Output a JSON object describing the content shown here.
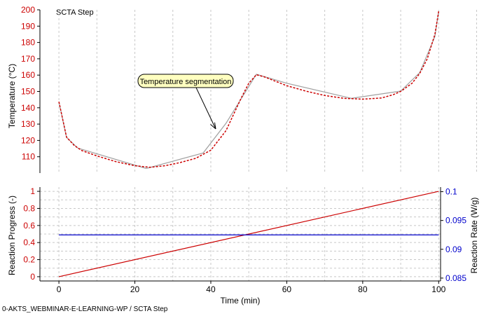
{
  "footer": {
    "text": "0-AKTS_WEBMINAR-E-LEARNING-WP / SCTA Step"
  },
  "colors": {
    "red": "#cc0000",
    "blue": "#0000cc",
    "grey": "#a0a0a0",
    "grid": "#c8c8c8",
    "axis": "#000000",
    "annotation_fill": "#ffffc0"
  },
  "chart_data": [
    {
      "type": "line",
      "title": "SCTA Step",
      "ylabel": "Temperature (°C)",
      "xlim": [
        -5,
        100.5
      ],
      "ylim": [
        100,
        200
      ],
      "yticks": [
        110,
        120,
        130,
        140,
        150,
        160,
        170,
        180,
        190,
        200
      ],
      "grid": "vertical-dashed",
      "series": [
        {
          "style": "grey-solid",
          "x": [
            0,
            2,
            5,
            23,
            38,
            44,
            52,
            60,
            77,
            90,
            95,
            99,
            100
          ],
          "y": [
            143.7,
            121.8,
            115.3,
            102.8,
            112.3,
            130.5,
            160.5,
            155,
            145.8,
            150.2,
            161.5,
            183.6,
            199.2
          ]
        },
        {
          "style": "red-dashed",
          "x": [
            0,
            1,
            2,
            4,
            6,
            10,
            15,
            20,
            24,
            28,
            32,
            36,
            40,
            44,
            48,
            50,
            52,
            54,
            60,
            65,
            70,
            75,
            80,
            85,
            88,
            90,
            93,
            95,
            97,
            99,
            100
          ],
          "y": [
            143.7,
            133,
            122,
            117,
            113.8,
            110.5,
            107,
            104.5,
            103.5,
            104.5,
            106.5,
            109,
            114,
            126,
            146,
            155,
            160.2,
            159,
            153.5,
            150.2,
            147.5,
            145.8,
            145.3,
            146,
            148,
            150,
            155,
            161,
            170,
            185,
            199
          ]
        }
      ],
      "annotations": [
        {
          "text": "Temperature segmentation",
          "x": 43.5,
          "y": 130
        }
      ]
    },
    {
      "type": "line",
      "xlabel": "Time (min)",
      "ylabel": "Reaction Progress (-)",
      "y2label": "Reaction Rate (W/g)",
      "xlim": [
        -5,
        100.5
      ],
      "xticks": [
        0,
        20,
        40,
        60,
        80,
        100
      ],
      "ylim": [
        -0.05,
        1.05
      ],
      "yticks": [
        0,
        0.2,
        0.4,
        0.6,
        0.8,
        1
      ],
      "y2lim": [
        0.0845,
        0.1008
      ],
      "y2ticks": [
        0.085,
        0.09,
        0.095,
        0.1
      ],
      "grid": "both-dashed",
      "series": [
        {
          "axis": "left",
          "color": "red",
          "x": [
            0,
            100
          ],
          "y": [
            0,
            1
          ]
        },
        {
          "axis": "right",
          "color": "blue",
          "x": [
            0,
            100
          ],
          "y": [
            0.0925,
            0.0925
          ]
        }
      ]
    }
  ]
}
